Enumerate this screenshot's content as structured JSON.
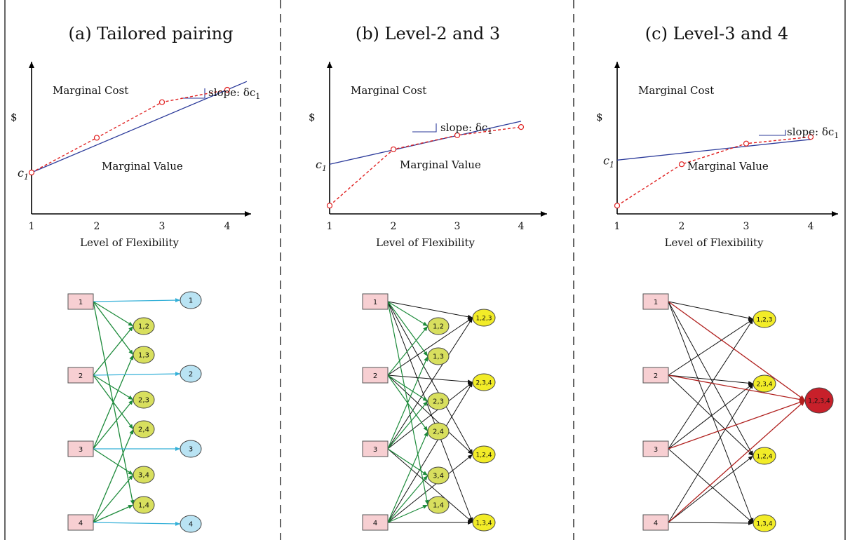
{
  "panels": [
    {
      "title": "(a) Tailored pairing",
      "chart": {
        "ylabel": "$",
        "xlabel": "Level of Flexibility",
        "x_ticks": [
          "1",
          "2",
          "3",
          "4"
        ],
        "c1_label": "c",
        "c1_sub": "1",
        "cost_label": "Marginal Cost",
        "value_label": "Marginal Value",
        "slope_label": "slope: δc",
        "slope_sub": "1",
        "cost_line": {
          "x": [
            1,
            4.3
          ],
          "y": [
            0.5,
            1.6
          ]
        },
        "value_points": {
          "x": [
            1,
            2,
            3,
            4
          ],
          "y": [
            0.5,
            0.92,
            1.35,
            1.5
          ]
        }
      },
      "sources": [
        "1",
        "2",
        "3",
        "4"
      ],
      "targets": [
        {
          "label": "1",
          "kind": "single"
        },
        {
          "label": "1,2",
          "kind": "pair"
        },
        {
          "label": "1,3",
          "kind": "pair"
        },
        {
          "label": "2",
          "kind": "single"
        },
        {
          "label": "2,3",
          "kind": "pair"
        },
        {
          "label": "2,4",
          "kind": "pair"
        },
        {
          "label": "3",
          "kind": "single"
        },
        {
          "label": "3,4",
          "kind": "pair"
        },
        {
          "label": "1,4",
          "kind": "pair"
        },
        {
          "label": "4",
          "kind": "single"
        }
      ]
    },
    {
      "title": "(b) Level-2 and 3",
      "chart": {
        "ylabel": "$",
        "xlabel": "Level of Flexibility",
        "x_ticks": [
          "1",
          "2",
          "3",
          "4"
        ],
        "c1_label": "c",
        "c1_sub": "1",
        "cost_label": "Marginal Cost",
        "value_label": "Marginal Value",
        "slope_label": "slope: δc",
        "slope_sub": "1",
        "cost_line": {
          "x": [
            1,
            4
          ],
          "y": [
            0.6,
            1.12
          ]
        },
        "value_points": {
          "x": [
            1,
            2,
            3,
            4
          ],
          "y": [
            0.1,
            0.78,
            0.95,
            1.05
          ]
        }
      },
      "sources": [
        "1",
        "2",
        "3",
        "4"
      ],
      "targets": [
        {
          "label": "1,2",
          "kind": "pair"
        },
        {
          "label": "1,3",
          "kind": "pair"
        },
        {
          "label": "2,3",
          "kind": "pair"
        },
        {
          "label": "2,4",
          "kind": "pair"
        },
        {
          "label": "3,4",
          "kind": "pair"
        },
        {
          "label": "1,4",
          "kind": "pair"
        },
        {
          "label": "1,2,3",
          "kind": "triple"
        },
        {
          "label": "2,3,4",
          "kind": "triple"
        },
        {
          "label": "1,2,4",
          "kind": "triple"
        },
        {
          "label": "1,3,4",
          "kind": "triple"
        }
      ]
    },
    {
      "title": "(c) Level-3 and 4",
      "chart": {
        "ylabel": "$",
        "xlabel": "Level of Flexibility",
        "x_ticks": [
          "1",
          "2",
          "3",
          "4"
        ],
        "c1_label": "c",
        "c1_sub": "1",
        "cost_label": "Marginal Cost",
        "value_label": "Marginal Value",
        "slope_label": "slope: δc",
        "slope_sub": "1",
        "cost_line": {
          "x": [
            1,
            4
          ],
          "y": [
            0.65,
            0.9
          ]
        },
        "value_points": {
          "x": [
            1,
            2,
            3,
            4
          ],
          "y": [
            0.1,
            0.6,
            0.85,
            0.93
          ]
        }
      },
      "sources": [
        "1",
        "2",
        "3",
        "4"
      ],
      "targets": [
        {
          "label": "1,2,3",
          "kind": "triple"
        },
        {
          "label": "2,3,4",
          "kind": "triple"
        },
        {
          "label": "1,2,4",
          "kind": "triple"
        },
        {
          "label": "1,3,4",
          "kind": "triple"
        },
        {
          "label": "1,2,3,4",
          "kind": "full"
        }
      ]
    }
  ],
  "colors": {
    "cost_line": "#2b3a9a",
    "value_line": "#e02020",
    "source_fill": "#f7cfd2",
    "single_fill": "#b9e3f3",
    "pair_fill": "#d8df5e",
    "triple_fill": "#f2ec28",
    "full_fill": "#c8202a",
    "arrow_single": "#34b0d8",
    "arrow_pair": "#1c8a3a",
    "arrow_triple": "#111111",
    "arrow_full": "#b0201e"
  }
}
